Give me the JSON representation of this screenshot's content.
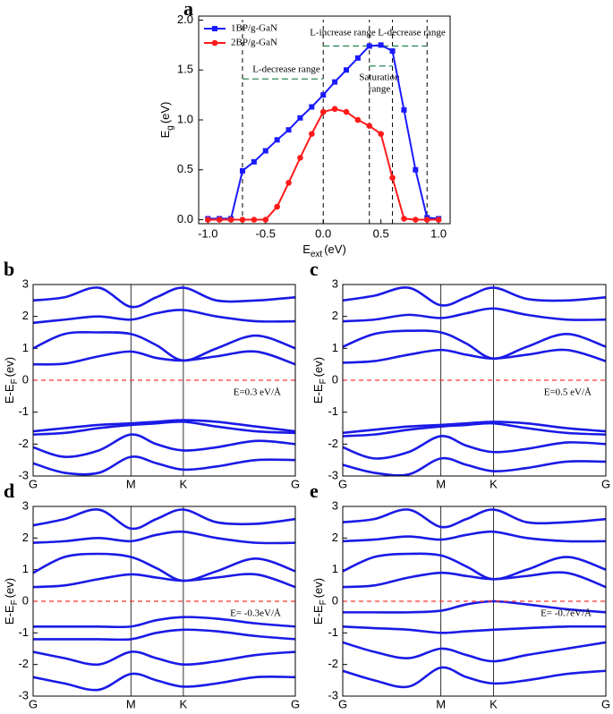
{
  "chart_data": [
    {
      "type": "line",
      "panel": "a",
      "xlabel": [
        "E",
        "ext",
        "(eV)"
      ],
      "ylabel": [
        "E",
        "g",
        "(eV)"
      ],
      "x": [
        -1.0,
        -0.9,
        -0.8,
        -0.7,
        -0.6,
        -0.5,
        -0.4,
        -0.3,
        -0.2,
        -0.1,
        0.0,
        0.1,
        0.2,
        0.3,
        0.4,
        0.5,
        0.6,
        0.7,
        0.8,
        0.9,
        1.0
      ],
      "series": [
        {
          "name": "1BP/g-GaN",
          "color": "#1a1aff",
          "marker": "square",
          "values": [
            0.01,
            0.01,
            0.01,
            0.49,
            0.58,
            0.69,
            0.8,
            0.9,
            1.02,
            1.13,
            1.25,
            1.38,
            1.5,
            1.62,
            1.74,
            1.75,
            1.69,
            1.1,
            0.5,
            0.02,
            0.01
          ]
        },
        {
          "name": "2BP/g-GaN",
          "color": "#ff1a1a",
          "marker": "circle",
          "values": [
            0.0,
            0.0,
            0.0,
            0.0,
            0.0,
            0.0,
            0.13,
            0.37,
            0.62,
            0.86,
            1.08,
            1.11,
            1.08,
            1.0,
            0.94,
            0.86,
            0.42,
            0.01,
            0.0,
            0.0,
            0.0
          ]
        }
      ],
      "xlim": [
        -1.08,
        1.1
      ],
      "xticks": [
        {
          "value": -1.0,
          "label": "-1.0"
        },
        {
          "value": -0.5,
          "label": "-0.5"
        },
        {
          "value": 0.0,
          "label": "0.0"
        },
        {
          "value": 0.5,
          "label": "0.5"
        },
        {
          "value": 1.0,
          "label": "1.0"
        }
      ],
      "ylim": [
        -0.04,
        2.04
      ],
      "yticks": [
        {
          "value": 0.0,
          "label": "0.0"
        },
        {
          "value": 0.5,
          "label": "0.5"
        },
        {
          "value": 1.0,
          "label": "1.0"
        },
        {
          "value": 1.5,
          "label": "1.5"
        },
        {
          "value": 2.0,
          "label": "2.0"
        }
      ],
      "vlines": [
        -0.7,
        0.0,
        0.4,
        0.6,
        0.9
      ],
      "ranges": [
        {
          "x": [
            -0.7,
            0.0
          ],
          "y": 1.41
        },
        {
          "x": [
            0.0,
            0.9
          ],
          "y": 1.74
        },
        {
          "x": [
            0.4,
            0.6
          ],
          "y": 1.54
        }
      ],
      "range_color": "#2e8b57",
      "annotations": [
        "L-decrease range",
        "L-increase range",
        "Saturation",
        "range",
        "L-decrease range"
      ],
      "legend": "upper left"
    },
    {
      "type": "bands",
      "panel": "b",
      "ylabel": [
        "E-E",
        "F",
        "(ev)"
      ],
      "annotation": "E=0.3 eV/Å",
      "color": "#1a1ae6",
      "fermi_level": 0,
      "fermi_color": "#ff3333",
      "xlim": [
        0,
        1
      ],
      "ylim": [
        -3,
        3
      ],
      "yticks": [
        -3,
        -2,
        -1,
        0,
        1,
        2,
        3
      ],
      "xticks": [
        {
          "value": 0,
          "label": "G"
        },
        {
          "value": 0.373,
          "label": "M"
        },
        {
          "value": 0.573,
          "label": "K"
        },
        {
          "value": 1,
          "label": "G"
        }
      ],
      "kx": [
        0,
        0.12,
        0.25,
        0.373,
        0.47,
        0.573,
        0.7,
        0.85,
        1
      ],
      "bands": [
        [
          0.5,
          0.52,
          0.75,
          0.9,
          0.7,
          0.62,
          0.75,
          0.9,
          0.5
        ],
        [
          1.0,
          1.45,
          1.5,
          1.45,
          1.1,
          0.62,
          1.0,
          1.4,
          1.0
        ],
        [
          1.8,
          1.9,
          2.0,
          1.9,
          2.1,
          2.2,
          2.0,
          1.85,
          1.85
        ],
        [
          2.5,
          2.6,
          2.9,
          2.3,
          2.6,
          2.9,
          2.5,
          2.5,
          2.6
        ],
        [
          -1.6,
          -1.5,
          -1.4,
          -1.35,
          -1.3,
          -1.25,
          -1.3,
          -1.45,
          -1.6
        ],
        [
          -1.7,
          -1.65,
          -1.5,
          -1.4,
          -1.35,
          -1.3,
          -1.45,
          -1.6,
          -1.65
        ],
        [
          -2.1,
          -2.4,
          -2.2,
          -1.7,
          -2.0,
          -2.2,
          -2.1,
          -1.9,
          -2.0
        ],
        [
          -2.6,
          -2.9,
          -2.9,
          -2.4,
          -2.6,
          -2.8,
          -2.7,
          -2.5,
          -2.5
        ]
      ]
    },
    {
      "type": "bands",
      "panel": "c",
      "ylabel": [
        "E-E",
        "F",
        "(ev)"
      ],
      "annotation": "E=0.5 eV/Å",
      "color": "#1a1ae6",
      "fermi_level": 0,
      "fermi_color": "#ff3333",
      "xlim": [
        0,
        1
      ],
      "ylim": [
        -3,
        3
      ],
      "yticks": [
        -3,
        -2,
        -1,
        0,
        1,
        2,
        3
      ],
      "xticks": [
        {
          "value": 0,
          "label": "G"
        },
        {
          "value": 0.373,
          "label": "M"
        },
        {
          "value": 0.573,
          "label": "K"
        },
        {
          "value": 1,
          "label": "G"
        }
      ],
      "kx": [
        0,
        0.12,
        0.25,
        0.373,
        0.47,
        0.573,
        0.7,
        0.85,
        1
      ],
      "bands": [
        [
          0.55,
          0.6,
          0.8,
          0.95,
          0.8,
          0.68,
          0.8,
          0.95,
          0.6
        ],
        [
          1.05,
          1.45,
          1.55,
          1.5,
          1.15,
          0.68,
          1.05,
          1.45,
          1.05
        ],
        [
          1.85,
          1.9,
          2.05,
          1.95,
          2.1,
          2.25,
          2.05,
          1.9,
          1.9
        ],
        [
          2.5,
          2.65,
          2.9,
          2.35,
          2.6,
          2.9,
          2.55,
          2.5,
          2.6
        ],
        [
          -1.65,
          -1.55,
          -1.45,
          -1.4,
          -1.35,
          -1.3,
          -1.35,
          -1.5,
          -1.6
        ],
        [
          -1.75,
          -1.7,
          -1.55,
          -1.45,
          -1.4,
          -1.35,
          -1.5,
          -1.65,
          -1.7
        ],
        [
          -2.1,
          -2.45,
          -2.25,
          -1.75,
          -2.05,
          -2.25,
          -2.15,
          -1.95,
          -2.0
        ],
        [
          -2.65,
          -2.9,
          -2.95,
          -2.45,
          -2.65,
          -2.85,
          -2.75,
          -2.55,
          -2.55
        ]
      ]
    },
    {
      "type": "bands",
      "panel": "d",
      "ylabel": [
        "E-E",
        "F",
        "(ev)"
      ],
      "annotation": "E= -0.3eV/Å",
      "color": "#1a1ae6",
      "fermi_level": 0,
      "fermi_color": "#ff3333",
      "xlim": [
        0,
        1
      ],
      "ylim": [
        -3,
        3
      ],
      "yticks": [
        -3,
        -2,
        -1,
        0,
        1,
        2,
        3
      ],
      "xticks": [
        {
          "value": 0,
          "label": "G"
        },
        {
          "value": 0.373,
          "label": "M"
        },
        {
          "value": 0.573,
          "label": "K"
        },
        {
          "value": 1,
          "label": "G"
        }
      ],
      "kx": [
        0,
        0.12,
        0.25,
        0.373,
        0.47,
        0.573,
        0.7,
        0.85,
        1
      ],
      "bands": [
        [
          0.45,
          0.5,
          0.7,
          0.85,
          0.75,
          0.65,
          0.75,
          0.85,
          0.45
        ],
        [
          0.9,
          1.4,
          1.5,
          1.4,
          1.05,
          0.65,
          0.95,
          1.35,
          0.95
        ],
        [
          1.85,
          1.9,
          2.0,
          1.9,
          2.1,
          2.2,
          2.0,
          1.85,
          1.85
        ],
        [
          2.4,
          2.6,
          2.9,
          2.3,
          2.6,
          2.9,
          2.5,
          2.45,
          2.6
        ],
        [
          -0.8,
          -0.8,
          -0.8,
          -0.8,
          -0.6,
          -0.5,
          -0.55,
          -0.7,
          -0.8
        ],
        [
          -1.2,
          -1.2,
          -1.2,
          -1.2,
          -1.0,
          -0.9,
          -0.95,
          -1.1,
          -1.2
        ],
        [
          -1.6,
          -1.8,
          -2.0,
          -1.6,
          -1.8,
          -2.0,
          -1.9,
          -1.7,
          -1.6
        ],
        [
          -2.4,
          -2.6,
          -2.8,
          -2.3,
          -2.5,
          -2.7,
          -2.6,
          -2.4,
          -2.4
        ]
      ]
    },
    {
      "type": "bands",
      "panel": "e",
      "ylabel": [
        "E-E",
        "F",
        "(ev)"
      ],
      "annotation": "E= -0.7eV/Å",
      "color": "#1a1ae6",
      "fermi_level": 0,
      "fermi_color": "#ff3333",
      "xlim": [
        0,
        1
      ],
      "ylim": [
        -3,
        3
      ],
      "yticks": [
        -3,
        -2,
        -1,
        0,
        1,
        2,
        3
      ],
      "xticks": [
        {
          "value": 0,
          "label": "G"
        },
        {
          "value": 0.373,
          "label": "M"
        },
        {
          "value": 0.573,
          "label": "K"
        },
        {
          "value": 1,
          "label": "G"
        }
      ],
      "kx": [
        0,
        0.12,
        0.25,
        0.373,
        0.47,
        0.573,
        0.7,
        0.85,
        1
      ],
      "bands": [
        [
          0.45,
          0.5,
          0.75,
          0.9,
          0.8,
          0.7,
          0.8,
          0.9,
          0.45
        ],
        [
          0.95,
          1.4,
          1.5,
          1.45,
          1.1,
          0.7,
          1.0,
          1.4,
          1.0
        ],
        [
          1.9,
          1.95,
          2.05,
          1.95,
          2.1,
          2.2,
          2.0,
          1.9,
          1.9
        ],
        [
          2.5,
          2.6,
          2.9,
          2.35,
          2.6,
          2.9,
          2.5,
          2.5,
          2.6
        ],
        [
          -0.35,
          -0.35,
          -0.35,
          -0.3,
          -0.1,
          0.0,
          -0.1,
          -0.25,
          -0.35
        ],
        [
          -0.8,
          -0.85,
          -0.9,
          -1.0,
          -0.95,
          -0.9,
          -0.85,
          -0.8,
          -0.8
        ],
        [
          -1.3,
          -1.6,
          -1.8,
          -1.5,
          -1.7,
          -1.9,
          -1.7,
          -1.5,
          -1.3
        ],
        [
          -2.2,
          -2.5,
          -2.7,
          -2.1,
          -2.4,
          -2.6,
          -2.5,
          -2.3,
          -2.2
        ]
      ]
    }
  ]
}
